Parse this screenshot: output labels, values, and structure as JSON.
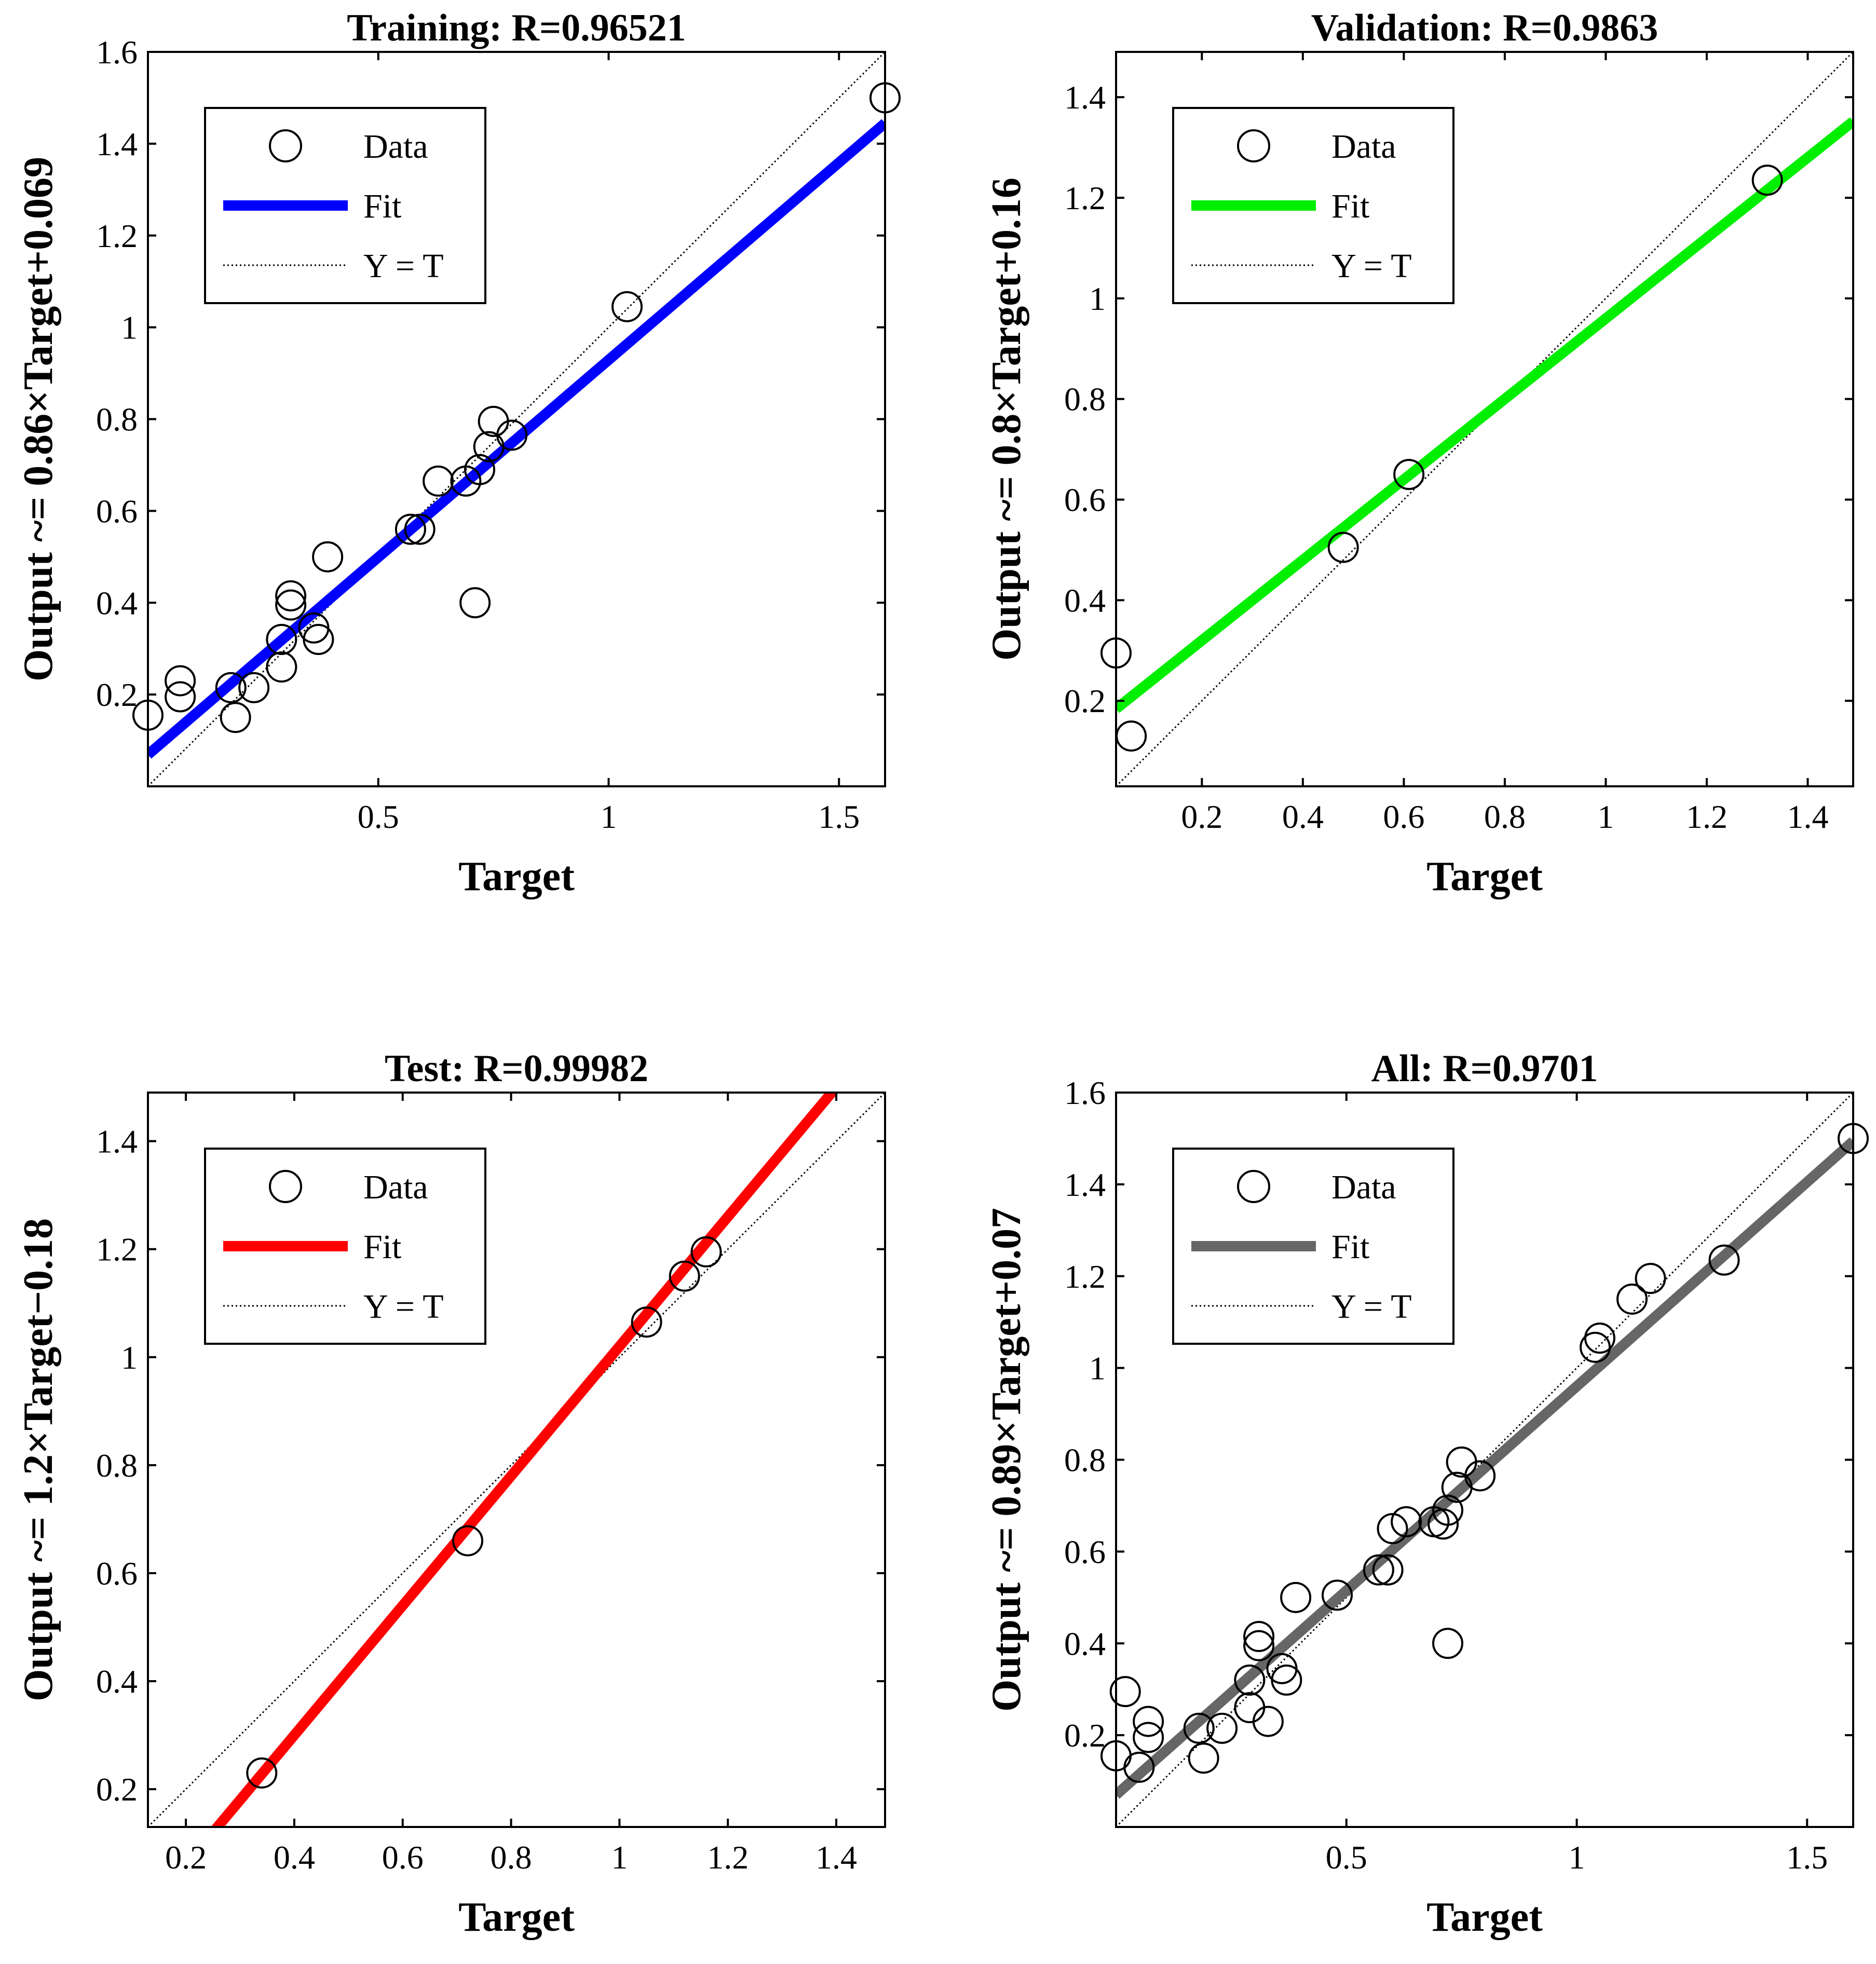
{
  "chart_data": [
    {
      "type": "scatter",
      "title": "Training: R=0.96521",
      "xlabel": "Target",
      "ylabel": "Output ~= 0.86×Target+0.069",
      "xlim": [
        0.0,
        1.6
      ],
      "ylim": [
        0.0,
        1.6
      ],
      "xticks": [
        0.5,
        1,
        1.5
      ],
      "xtick_labels": [
        "0.5",
        "1",
        "1.5"
      ],
      "yticks": [
        0.2,
        0.4,
        0.6,
        0.8,
        1,
        1.2,
        1.4,
        1.6
      ],
      "ytick_labels": [
        "0.2",
        "0.4",
        "0.6",
        "0.8",
        "1",
        "1.2",
        "1.4",
        "1.6"
      ],
      "fit": {
        "slope": 0.86,
        "intercept": 0.069,
        "color": "#0000ff"
      },
      "legend": {
        "position": "top-left",
        "data": "Data",
        "fit": "Fit",
        "ref": "Y = T"
      },
      "grid": false,
      "x": [
        0.0,
        0.07,
        0.07,
        0.18,
        0.19,
        0.23,
        0.29,
        0.29,
        0.31,
        0.31,
        0.36,
        0.37,
        0.39,
        0.57,
        0.59,
        0.63,
        0.69,
        0.71,
        0.72,
        0.74,
        0.75,
        0.79,
        1.04,
        1.6
      ],
      "y": [
        0.155,
        0.195,
        0.23,
        0.215,
        0.15,
        0.215,
        0.26,
        0.32,
        0.395,
        0.415,
        0.345,
        0.32,
        0.5,
        0.56,
        0.56,
        0.665,
        0.665,
        0.4,
        0.69,
        0.74,
        0.795,
        0.765,
        1.045,
        1.5
      ]
    },
    {
      "type": "scatter",
      "title": "Validation: R=0.9863",
      "xlabel": "Target",
      "ylabel": "Output ~= 0.8×Target+0.16",
      "xlim": [
        0.03,
        1.49
      ],
      "ylim": [
        0.03,
        1.49
      ],
      "xticks": [
        0.2,
        0.4,
        0.6,
        0.8,
        1,
        1.2,
        1.4
      ],
      "xtick_labels": [
        "0.2",
        "0.4",
        "0.6",
        "0.8",
        "1",
        "1.2",
        "1.4"
      ],
      "yticks": [
        0.2,
        0.4,
        0.6,
        0.8,
        1,
        1.2,
        1.4
      ],
      "ytick_labels": [
        "0.2",
        "0.4",
        "0.6",
        "0.8",
        "1",
        "1.2",
        "1.4"
      ],
      "fit": {
        "slope": 0.8,
        "intercept": 0.16,
        "color": "#00ee00"
      },
      "legend": {
        "position": "top-left",
        "data": "Data",
        "fit": "Fit",
        "ref": "Y = T"
      },
      "grid": false,
      "x": [
        0.03,
        0.06,
        0.48,
        0.61,
        1.32
      ],
      "y": [
        0.295,
        0.13,
        0.505,
        0.65,
        1.235
      ]
    },
    {
      "type": "scatter",
      "title": "Test: R=0.99982",
      "xlabel": "Target",
      "ylabel": "Output ~= 1.2×Target−0.18",
      "xlim": [
        0.13,
        1.49
      ],
      "ylim": [
        0.13,
        1.49
      ],
      "xticks": [
        0.2,
        0.4,
        0.6,
        0.8,
        1,
        1.2,
        1.4
      ],
      "xtick_labels": [
        "0.2",
        "0.4",
        "0.6",
        "0.8",
        "1",
        "1.2",
        "1.4"
      ],
      "yticks": [
        0.2,
        0.4,
        0.6,
        0.8,
        1,
        1.2,
        1.4
      ],
      "ytick_labels": [
        "0.2",
        "0.4",
        "0.6",
        "0.8",
        "1",
        "1.2",
        "1.4"
      ],
      "fit": {
        "slope": 1.2,
        "intercept": -0.18,
        "color": "#ff0000"
      },
      "legend": {
        "position": "top-left",
        "data": "Data",
        "fit": "Fit",
        "ref": "Y = T"
      },
      "grid": false,
      "x": [
        0.34,
        0.72,
        1.05,
        1.12,
        1.16
      ],
      "y": [
        0.23,
        0.66,
        1.065,
        1.15,
        1.195
      ]
    },
    {
      "type": "scatter",
      "title": "All: R=0.9701",
      "xlabel": "Target",
      "ylabel": "Output ~= 0.89×Target+0.07",
      "xlim": [
        0.0,
        1.6
      ],
      "ylim": [
        0.0,
        1.6
      ],
      "xticks": [
        0.5,
        1,
        1.5
      ],
      "xtick_labels": [
        "0.5",
        "1",
        "1.5"
      ],
      "yticks": [
        0.2,
        0.4,
        0.6,
        0.8,
        1,
        1.2,
        1.4,
        1.6
      ],
      "ytick_labels": [
        "0.2",
        "0.4",
        "0.6",
        "0.8",
        "1",
        "1.2",
        "1.4",
        "1.6"
      ],
      "fit": {
        "slope": 0.89,
        "intercept": 0.07,
        "color": "#666666"
      },
      "legend": {
        "position": "top-left",
        "data": "Data",
        "fit": "Fit",
        "ref": "Y = T"
      },
      "grid": false,
      "x": [
        0.0,
        0.02,
        0.05,
        0.07,
        0.07,
        0.19,
        0.18,
        0.23,
        0.29,
        0.29,
        0.31,
        0.31,
        0.33,
        0.36,
        0.37,
        0.39,
        0.48,
        0.57,
        0.59,
        0.6,
        0.63,
        0.69,
        0.71,
        0.72,
        0.72,
        0.74,
        0.75,
        0.79,
        1.04,
        1.05,
        1.12,
        1.16,
        1.32,
        1.6
      ],
      "y": [
        0.155,
        0.295,
        0.13,
        0.195,
        0.23,
        0.15,
        0.215,
        0.215,
        0.26,
        0.32,
        0.395,
        0.415,
        0.23,
        0.345,
        0.32,
        0.5,
        0.505,
        0.56,
        0.56,
        0.65,
        0.665,
        0.665,
        0.66,
        0.4,
        0.69,
        0.74,
        0.795,
        0.765,
        1.045,
        1.065,
        1.15,
        1.195,
        1.235,
        1.5
      ]
    }
  ]
}
